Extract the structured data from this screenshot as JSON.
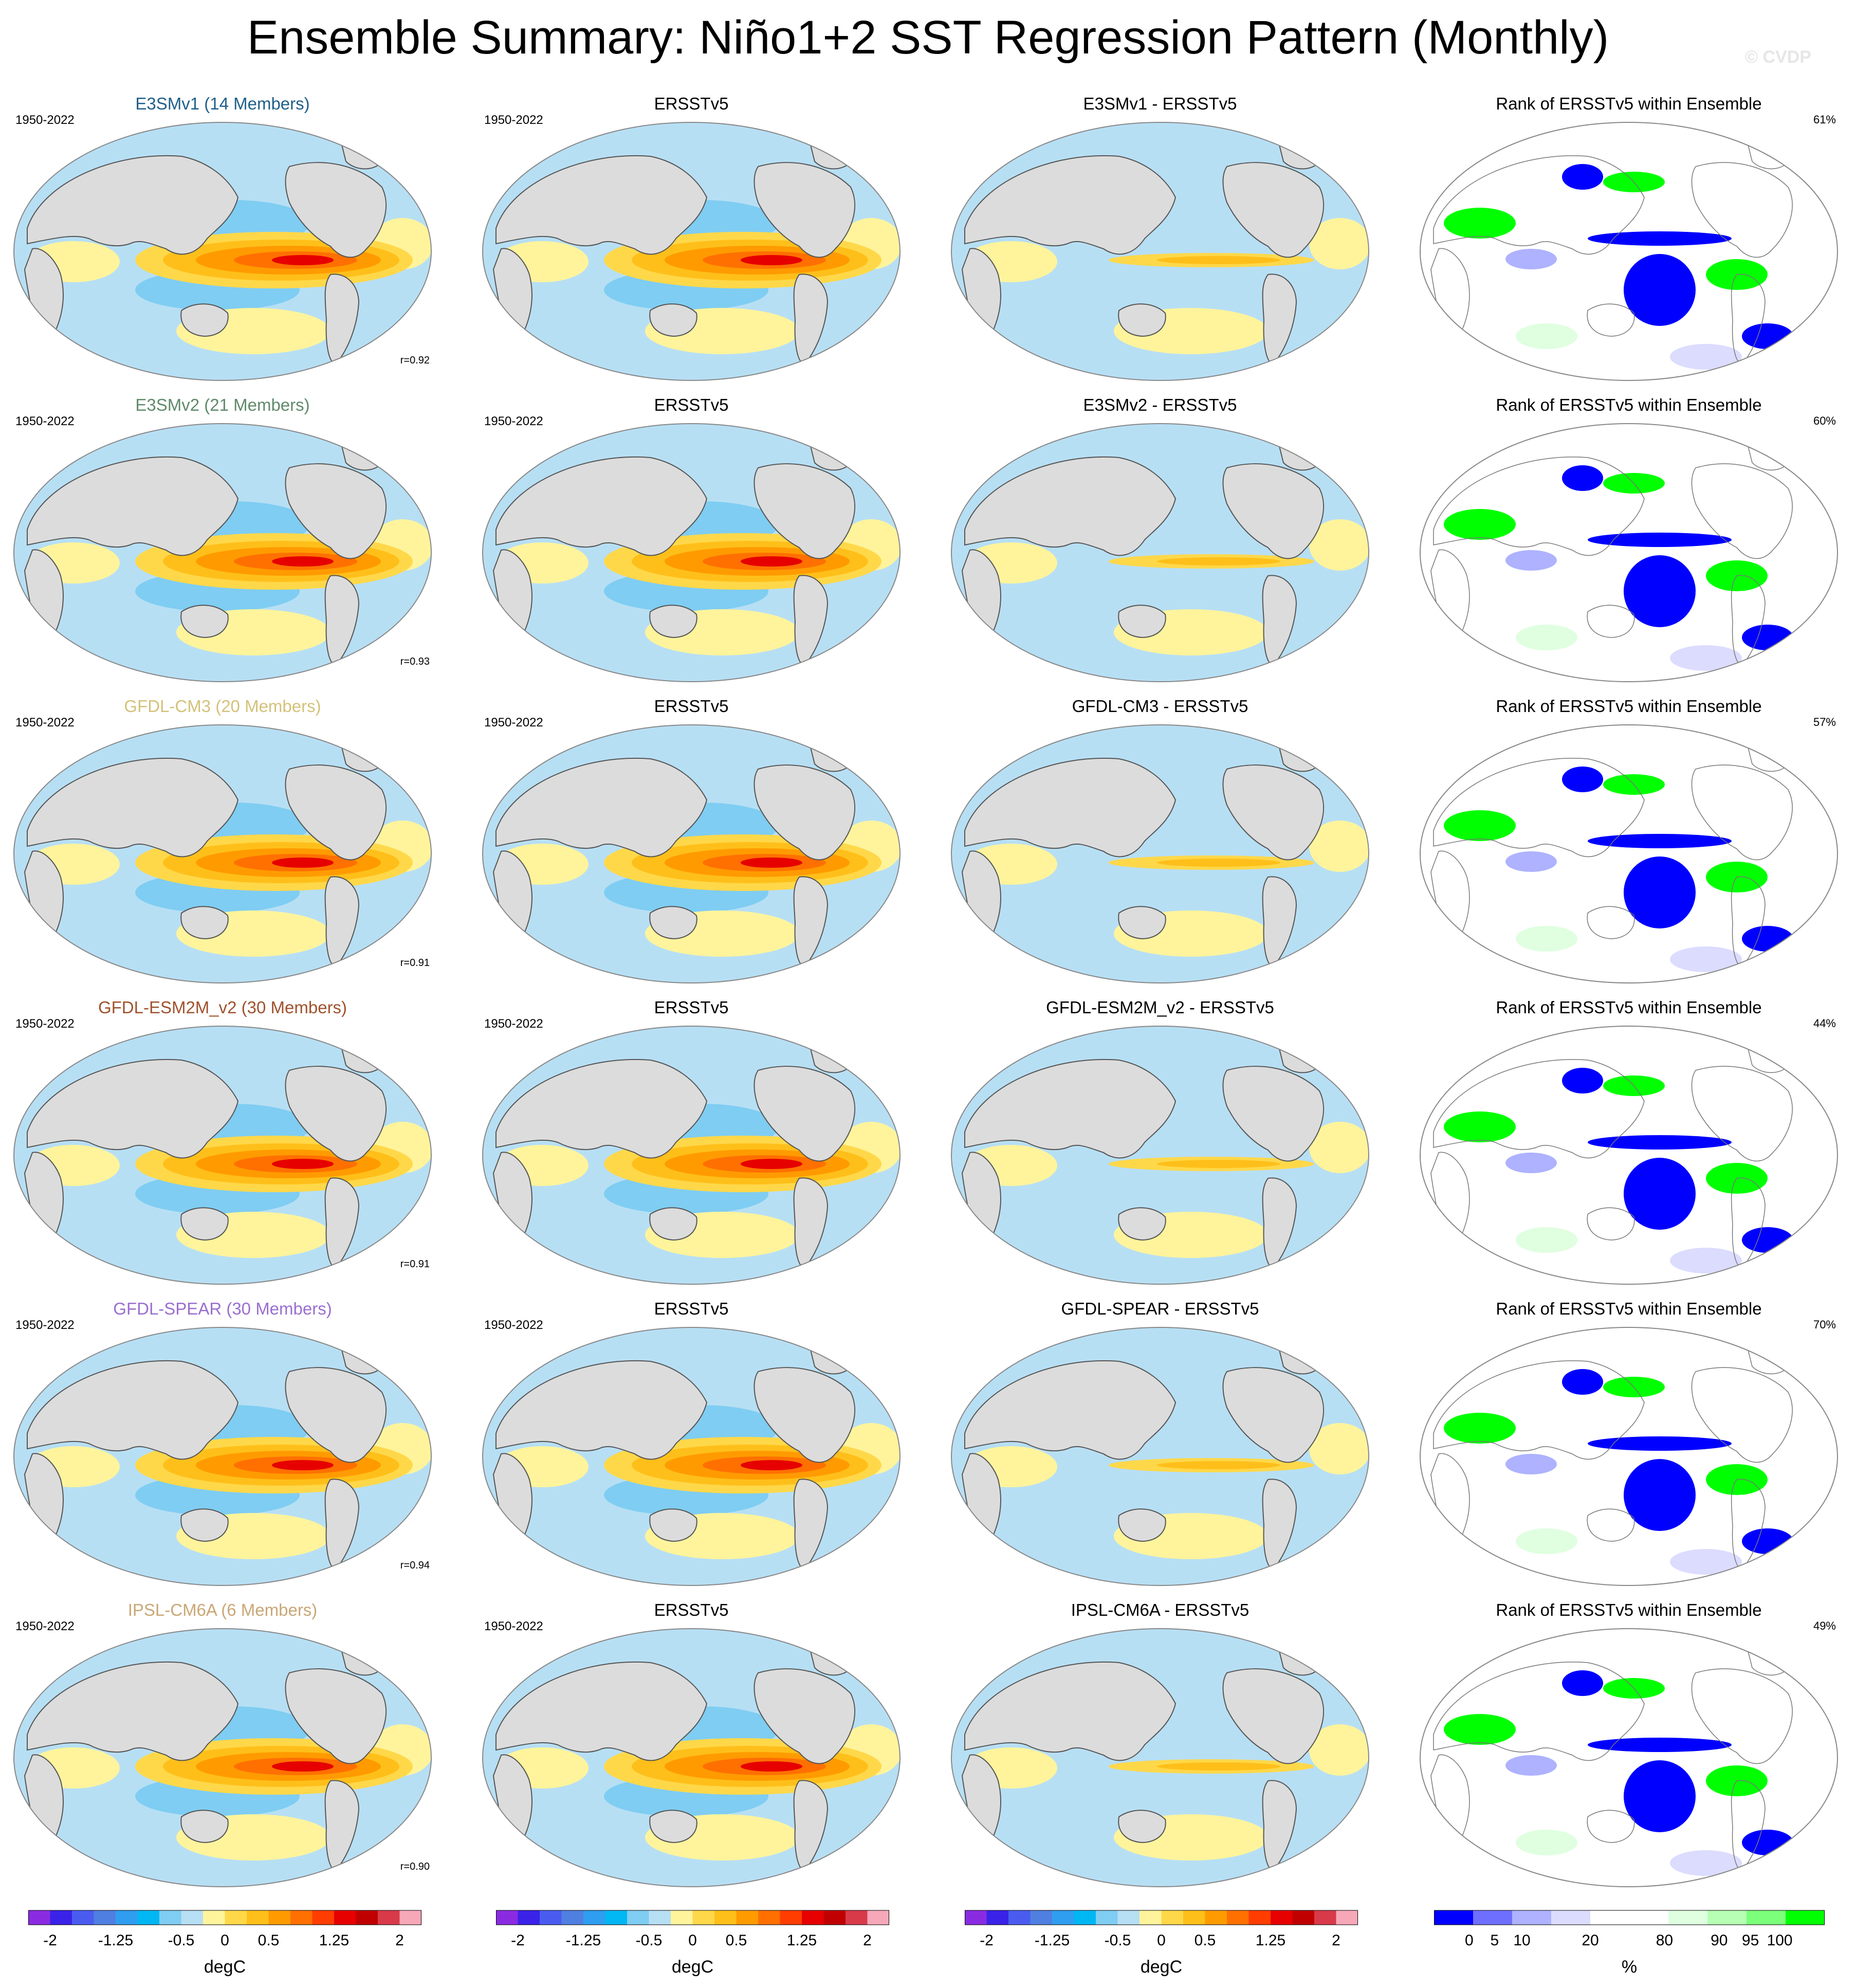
{
  "title": "Ensemble Summary: Niño1+2 SST Regression Pattern (Monthly)",
  "copyright": "© CVDP",
  "colors": {
    "land": "#dcdcdc",
    "ocean_neg_light": "#b7dff4",
    "ocean_pos_light": "#fff49c",
    "rank_low": "#0000ff",
    "rank_high": "#00ff00"
  },
  "rows": [
    {
      "model": "E3SMv1 (14 Members)",
      "model_color": "#1f5f8a",
      "years": "1950-2022",
      "corr": "r=0.92",
      "diff_title": "E3SMv1 - ERSSTv5",
      "rank_pct": "61%"
    },
    {
      "model": "E3SMv2 (21 Members)",
      "model_color": "#5f8a6a",
      "years": "1950-2022",
      "corr": "r=0.93",
      "diff_title": "E3SMv2 - ERSSTv5",
      "rank_pct": "60%"
    },
    {
      "model": "GFDL-CM3 (20 Members)",
      "model_color": "#d4c17a",
      "years": "1950-2022",
      "corr": "r=0.91",
      "diff_title": "GFDL-CM3 - ERSSTv5",
      "rank_pct": "57%"
    },
    {
      "model": "GFDL-ESM2M_v2 (30 Members)",
      "model_color": "#a0522d",
      "years": "1950-2022",
      "corr": "r=0.91",
      "diff_title": "GFDL-ESM2M_v2 - ERSSTv5",
      "rank_pct": "44%"
    },
    {
      "model": "GFDL-SPEAR (30 Members)",
      "model_color": "#9a6fd0",
      "years": "1950-2022",
      "corr": "r=0.94",
      "diff_title": "GFDL-SPEAR - ERSSTv5",
      "rank_pct": "70%"
    },
    {
      "model": "IPSL-CM6A (6 Members)",
      "model_color": "#c9a776",
      "years": "1950-2022",
      "corr": "r=0.90",
      "diff_title": "IPSL-CM6A - ERSSTv5",
      "rank_pct": "49%"
    }
  ],
  "obs_title": "ERSSTv5",
  "obs_years": "1950-2022",
  "rank_title": "Rank of ERSSTv5 within Ensemble",
  "colorbar_deg": {
    "colors": [
      "#8a2be2",
      "#3a22e8",
      "#4a5cf0",
      "#4f7fe0",
      "#2f9ef0",
      "#00b7f4",
      "#7fcdf2",
      "#b7dff4",
      "#fff49c",
      "#ffd84a",
      "#ffbf1a",
      "#ff9b00",
      "#ff7000",
      "#ff3d00",
      "#e60000",
      "#c00000",
      "#d83a4a",
      "#f7a8b8"
    ],
    "ticks": [
      "-2",
      "-1.25",
      "-0.5",
      "0",
      "0.5",
      "1.25",
      "2"
    ],
    "unit": "degC"
  },
  "colorbar_rank": {
    "colors": [
      "#0000ff",
      "#6f6fff",
      "#aeb2ff",
      "#dcdcff",
      "#ffffff",
      "#ffffff",
      "#dfffe0",
      "#b6ffb4",
      "#7cff7a",
      "#00ff00"
    ],
    "ticks": [
      "0",
      "5",
      "10",
      "20",
      "80",
      "90",
      "95",
      "100"
    ],
    "unit": "%"
  }
}
